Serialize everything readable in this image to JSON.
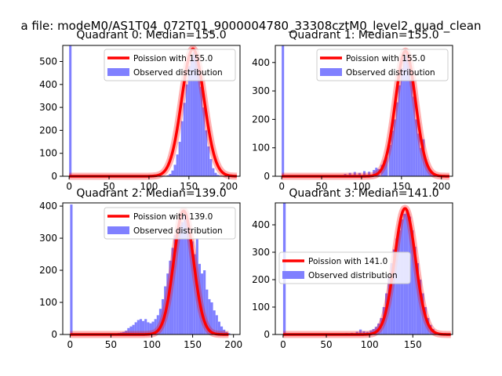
{
  "figure": {
    "suptitle": "a file: modeM0/AS1T04_072T01_9000004780_33308cztM0_level2_quad_clean"
  },
  "colors": {
    "curve": "#ff0000",
    "bars": "#8080ff",
    "axis": "#000000"
  },
  "chart_data": [
    {
      "type": "bar",
      "title": "Quadrant 0: Median=155.0",
      "xlim": [
        -8,
        214
      ],
      "ylim": [
        0,
        570
      ],
      "xticks": [
        0,
        50,
        100,
        150,
        200
      ],
      "yticks": [
        0,
        100,
        200,
        300,
        400,
        500
      ],
      "legend": {
        "position": "top-right",
        "line_label": "Poission with 155.0",
        "bar_label": "Observed distribution"
      },
      "poisson_mean": 155.0,
      "poisson_peak": 555,
      "poisson_sigma": 14,
      "bins": [
        {
          "x": 0,
          "y": 570
        },
        {
          "x": 110,
          "y": 1
        },
        {
          "x": 113,
          "y": 1
        },
        {
          "x": 116,
          "y": 2
        },
        {
          "x": 119,
          "y": 2
        },
        {
          "x": 122,
          "y": 4
        },
        {
          "x": 125,
          "y": 10
        },
        {
          "x": 128,
          "y": 25
        },
        {
          "x": 131,
          "y": 50
        },
        {
          "x": 134,
          "y": 95
        },
        {
          "x": 137,
          "y": 150
        },
        {
          "x": 140,
          "y": 240
        },
        {
          "x": 143,
          "y": 320
        },
        {
          "x": 146,
          "y": 400
        },
        {
          "x": 149,
          "y": 480
        },
        {
          "x": 152,
          "y": 520
        },
        {
          "x": 155,
          "y": 540
        },
        {
          "x": 158,
          "y": 520
        },
        {
          "x": 161,
          "y": 470
        },
        {
          "x": 164,
          "y": 390
        },
        {
          "x": 167,
          "y": 300
        },
        {
          "x": 170,
          "y": 200
        },
        {
          "x": 173,
          "y": 130
        },
        {
          "x": 176,
          "y": 75
        },
        {
          "x": 179,
          "y": 35
        },
        {
          "x": 182,
          "y": 15
        },
        {
          "x": 185,
          "y": 6
        },
        {
          "x": 188,
          "y": 3
        },
        {
          "x": 191,
          "y": 1
        }
      ]
    },
    {
      "type": "bar",
      "title": "Quadrant 1: Median=155.0",
      "xlim": [
        -8,
        214
      ],
      "ylim": [
        0,
        460
      ],
      "xticks": [
        0,
        50,
        100,
        150,
        200
      ],
      "yticks": [
        0,
        100,
        200,
        300,
        400
      ],
      "legend": {
        "position": "top-right",
        "line_label": "Poission with 155.0",
        "bar_label": "Observed distribution"
      },
      "poisson_mean": 155.0,
      "poisson_peak": 440,
      "poisson_sigma": 12.5,
      "bins": [
        {
          "x": 0,
          "y": 460
        },
        {
          "x": 78,
          "y": 8
        },
        {
          "x": 84,
          "y": 12
        },
        {
          "x": 90,
          "y": 15
        },
        {
          "x": 96,
          "y": 12
        },
        {
          "x": 102,
          "y": 18
        },
        {
          "x": 108,
          "y": 16
        },
        {
          "x": 114,
          "y": 22
        },
        {
          "x": 117,
          "y": 30
        },
        {
          "x": 120,
          "y": 25
        },
        {
          "x": 124,
          "y": 40
        },
        {
          "x": 127,
          "y": 55
        },
        {
          "x": 130,
          "y": 70
        },
        {
          "x": 134,
          "y": 110
        },
        {
          "x": 137,
          "y": 160
        },
        {
          "x": 140,
          "y": 200
        },
        {
          "x": 143,
          "y": 260
        },
        {
          "x": 146,
          "y": 320
        },
        {
          "x": 149,
          "y": 380
        },
        {
          "x": 152,
          "y": 420
        },
        {
          "x": 155,
          "y": 430
        },
        {
          "x": 158,
          "y": 400
        },
        {
          "x": 161,
          "y": 340
        },
        {
          "x": 164,
          "y": 280
        },
        {
          "x": 167,
          "y": 200
        },
        {
          "x": 170,
          "y": 150
        },
        {
          "x": 173,
          "y": 100
        },
        {
          "x": 176,
          "y": 130
        },
        {
          "x": 179,
          "y": 60
        },
        {
          "x": 182,
          "y": 30
        },
        {
          "x": 185,
          "y": 15
        },
        {
          "x": 188,
          "y": 5
        }
      ]
    },
    {
      "type": "bar",
      "title": "Quadrant 2: Median=139.0",
      "xlim": [
        -9,
        208
      ],
      "ylim": [
        0,
        410
      ],
      "xticks": [
        0,
        50,
        100,
        150,
        200
      ],
      "yticks": [
        0,
        100,
        200,
        300,
        400
      ],
      "legend": {
        "position": "top-right",
        "line_label": "Poission with 139.0",
        "bar_label": "Observed distribution"
      },
      "poisson_mean": 139.0,
      "poisson_peak": 385,
      "poisson_sigma": 12,
      "bins": [
        {
          "x": 0,
          "y": 405
        },
        {
          "x": 55,
          "y": 3
        },
        {
          "x": 58,
          "y": 5
        },
        {
          "x": 61,
          "y": 6
        },
        {
          "x": 64,
          "y": 8
        },
        {
          "x": 67,
          "y": 12
        },
        {
          "x": 70,
          "y": 20
        },
        {
          "x": 73,
          "y": 25
        },
        {
          "x": 76,
          "y": 30
        },
        {
          "x": 79,
          "y": 38
        },
        {
          "x": 82,
          "y": 45
        },
        {
          "x": 85,
          "y": 48
        },
        {
          "x": 88,
          "y": 42
        },
        {
          "x": 91,
          "y": 48
        },
        {
          "x": 94,
          "y": 38
        },
        {
          "x": 97,
          "y": 35
        },
        {
          "x": 100,
          "y": 40
        },
        {
          "x": 103,
          "y": 48
        },
        {
          "x": 106,
          "y": 60
        },
        {
          "x": 109,
          "y": 80
        },
        {
          "x": 112,
          "y": 110
        },
        {
          "x": 115,
          "y": 150
        },
        {
          "x": 118,
          "y": 190
        },
        {
          "x": 121,
          "y": 230
        },
        {
          "x": 124,
          "y": 270
        },
        {
          "x": 127,
          "y": 310
        },
        {
          "x": 130,
          "y": 320
        },
        {
          "x": 133,
          "y": 340
        },
        {
          "x": 136,
          "y": 350
        },
        {
          "x": 139,
          "y": 375
        },
        {
          "x": 142,
          "y": 360
        },
        {
          "x": 145,
          "y": 330
        },
        {
          "x": 148,
          "y": 290
        },
        {
          "x": 151,
          "y": 250
        },
        {
          "x": 154,
          "y": 300
        },
        {
          "x": 157,
          "y": 220
        },
        {
          "x": 160,
          "y": 190
        },
        {
          "x": 163,
          "y": 200
        },
        {
          "x": 166,
          "y": 140
        },
        {
          "x": 169,
          "y": 110
        },
        {
          "x": 172,
          "y": 100
        },
        {
          "x": 175,
          "y": 75
        },
        {
          "x": 178,
          "y": 60
        },
        {
          "x": 181,
          "y": 40
        },
        {
          "x": 184,
          "y": 25
        },
        {
          "x": 187,
          "y": 15
        },
        {
          "x": 190,
          "y": 8
        },
        {
          "x": 193,
          "y": 4
        }
      ]
    },
    {
      "type": "bar",
      "title": "Quadrant 3: Median=141.0",
      "xlim": [
        -9,
        196
      ],
      "ylim": [
        0,
        480
      ],
      "xticks": [
        0,
        50,
        100,
        150
      ],
      "yticks": [
        0,
        100,
        200,
        300,
        400
      ],
      "legend": {
        "position": "center-left",
        "line_label": "Poission with 141.0",
        "bar_label": "Observed distribution"
      },
      "poisson_mean": 141.0,
      "poisson_peak": 460,
      "poisson_sigma": 12,
      "bins": [
        {
          "x": 0,
          "y": 480
        },
        {
          "x": 72,
          "y": 5
        },
        {
          "x": 78,
          "y": 6
        },
        {
          "x": 84,
          "y": 10
        },
        {
          "x": 88,
          "y": 18
        },
        {
          "x": 92,
          "y": 12
        },
        {
          "x": 96,
          "y": 10
        },
        {
          "x": 100,
          "y": 15
        },
        {
          "x": 103,
          "y": 20
        },
        {
          "x": 106,
          "y": 28
        },
        {
          "x": 109,
          "y": 40
        },
        {
          "x": 112,
          "y": 60
        },
        {
          "x": 115,
          "y": 100
        },
        {
          "x": 118,
          "y": 150
        },
        {
          "x": 121,
          "y": 210
        },
        {
          "x": 124,
          "y": 260
        },
        {
          "x": 127,
          "y": 310
        },
        {
          "x": 130,
          "y": 350
        },
        {
          "x": 133,
          "y": 380
        },
        {
          "x": 136,
          "y": 420
        },
        {
          "x": 139,
          "y": 440
        },
        {
          "x": 142,
          "y": 455
        },
        {
          "x": 145,
          "y": 430
        },
        {
          "x": 148,
          "y": 380
        },
        {
          "x": 151,
          "y": 320
        },
        {
          "x": 154,
          "y": 260
        },
        {
          "x": 157,
          "y": 200
        },
        {
          "x": 160,
          "y": 150
        },
        {
          "x": 163,
          "y": 100
        },
        {
          "x": 166,
          "y": 60
        },
        {
          "x": 169,
          "y": 35
        },
        {
          "x": 172,
          "y": 20
        },
        {
          "x": 175,
          "y": 10
        },
        {
          "x": 178,
          "y": 5
        }
      ]
    }
  ]
}
